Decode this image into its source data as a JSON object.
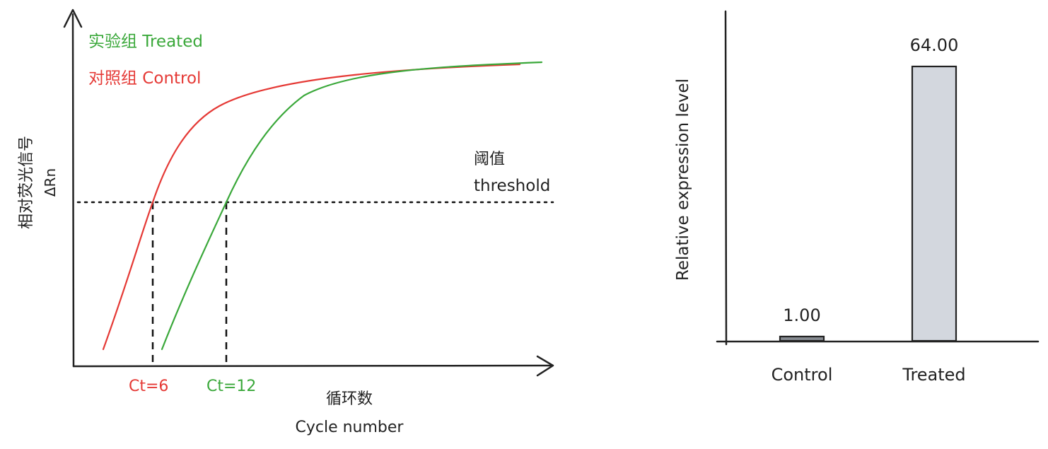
{
  "chart_data": [
    {
      "type": "line",
      "legend": [
        {
          "label": "实验组 Treated",
          "color": "#3aa83a"
        },
        {
          "label": "对照组 Control",
          "color": "#e53935"
        }
      ],
      "ylabel_line1": "相对荧光信号",
      "ylabel_line2": "ΔRn",
      "xlabel_line1": "循环数",
      "xlabel_line2": "Cycle number",
      "threshold_label_line1": "阈值",
      "threshold_label_line2": "threshold",
      "ct_labels": [
        {
          "text": "Ct=6",
          "color": "#e53935",
          "cycle": 6
        },
        {
          "text": "Ct=12",
          "color": "#3aa83a",
          "cycle": 12
        }
      ],
      "series": [
        {
          "name": "对照组 Control",
          "color": "#e53935",
          "ct": 6
        },
        {
          "name": "实验组 Treated",
          "color": "#3aa83a",
          "ct": 12
        }
      ]
    },
    {
      "type": "bar",
      "categories": [
        "Control",
        "Treated"
      ],
      "values": [
        1.0,
        64.0
      ],
      "value_labels": [
        "1.00",
        "64.00"
      ],
      "ylabel": "Relative expression level",
      "colors": [
        "#868b91",
        "#d3d7de"
      ]
    }
  ]
}
